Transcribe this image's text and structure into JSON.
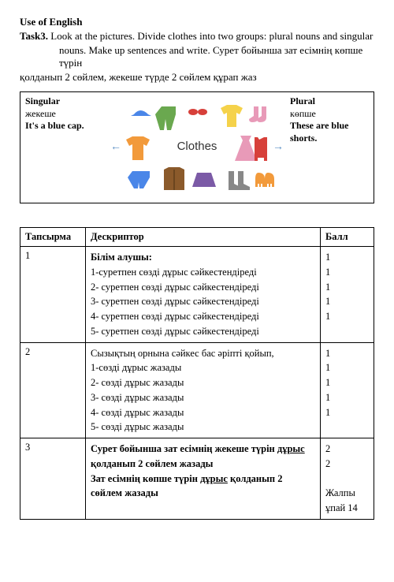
{
  "heading": "Use of English",
  "task": {
    "label": "Task3.",
    "text1": "Look at the pictures. Divide clothes into two groups: plural nouns and singular",
    "text2": "nouns. Make up sentences and write. Сурет бойынша зат есімнің көпше түрін",
    "text3": "қолданып 2 сөйлем, жекеше түрде 2 сөйлем құрап жаз"
  },
  "box": {
    "left": {
      "title": "Singular",
      "sub": "жекеше",
      "example": "It's a blue cap."
    },
    "right": {
      "title": "Plural",
      "sub": "көпше",
      "example": "These are blue shorts."
    },
    "center_label": "Clothes"
  },
  "rubric": {
    "headers": {
      "task": "Тапсырма",
      "desc": "Дескриптор",
      "score": "Балл"
    },
    "rows": [
      {
        "num": "1",
        "lines": [
          "Білім алушы:",
          "1-суретпен сөзді дұрыс сәйкестендіреді",
          "2- суретпен сөзді дұрыс сәйкестендіреді",
          "3- суретпен сөзді дұрыс сәйкестендіреді",
          "4- суретпен сөзді дұрыс сәйкестендіреді",
          "5- суретпен сөзді дұрыс сәйкестендіреді"
        ],
        "scores": [
          "",
          "1",
          "1",
          "1",
          "1",
          "1"
        ]
      },
      {
        "num": "2",
        "lines": [
          "Сызықтың орнына сәйкес бас әріпті қойып,",
          "1-сөзді дұрыс жазады",
          "2- сөзді дұрыс жазады",
          "3- сөзді дұрыс жазады",
          "4- сөзді дұрыс жазады",
          "5- сөзді дұрыс жазады"
        ],
        "scores": [
          "",
          "1",
          "1",
          "1",
          "1",
          "1"
        ]
      },
      {
        "num": "3",
        "lines_html": "Сурет бойынша  зат есімнің жекеше түрін <u>дұрыс</u> қолданып  2 сөйлем жазады<br>Зат есімнің көпше түрін <u>дұрыс</u> қолданып 2 сөйлем жазады",
        "scores": [
          "",
          "2",
          "2"
        ]
      }
    ],
    "total_label": "Жалпы ұпай 14"
  },
  "icons": {
    "colors": {
      "red": "#d7403a",
      "orange": "#f29a3b",
      "yellow": "#f5d24a",
      "green": "#6aa84f",
      "blue": "#4a86e8",
      "pink": "#e89ab8",
      "brown": "#8b5a2b",
      "gray": "#888888",
      "purple": "#7b5aa6"
    }
  }
}
